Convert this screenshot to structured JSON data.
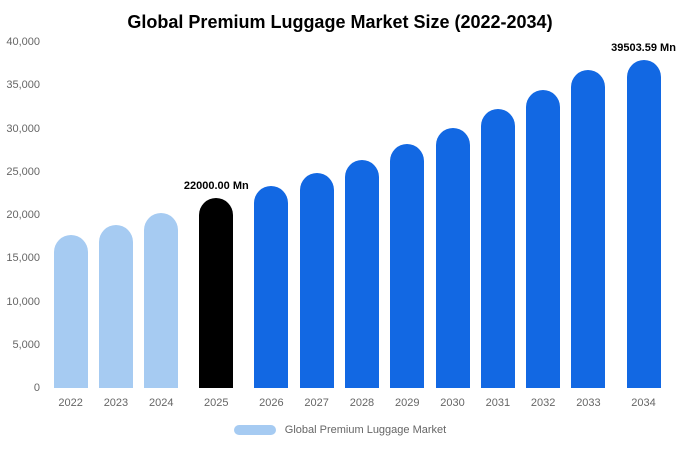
{
  "title": "Global Premium Luggage Market Size (2022-2034)",
  "legend": {
    "label": "Global Premium Luggage Market",
    "swatch_color": "#a6cbf2"
  },
  "colors": {
    "historical": "#a6cbf2",
    "current": "#000000",
    "forecast": "#1268e3",
    "axis_text": "#666666",
    "background": "#ffffff"
  },
  "chart_data": {
    "type": "bar",
    "title": "Global Premium Luggage Market Size (2022-2034)",
    "unit": "Mn",
    "categories": [
      "2022",
      "2023",
      "2024",
      "2025",
      "2026",
      "2027",
      "2028",
      "2029",
      "2030",
      "2031",
      "2032",
      "2033",
      "2034"
    ],
    "values": [
      17700,
      18900,
      20200,
      22000,
      23300,
      24800,
      26400,
      28200,
      30100,
      32200,
      34400,
      36800,
      39503.59
    ],
    "bar_types": [
      "historical",
      "historical",
      "historical",
      "current",
      "forecast",
      "forecast",
      "forecast",
      "forecast",
      "forecast",
      "forecast",
      "forecast",
      "forecast",
      "forecast"
    ],
    "annotations": [
      {
        "category": "2025",
        "text": "22000.00 Mn"
      },
      {
        "category": "2034",
        "text": "39503.59 Mn"
      }
    ],
    "ylim": [
      0,
      40000
    ],
    "yticks": [
      "0",
      "5,000",
      "10,000",
      "15,000",
      "20,000",
      "25,000",
      "30,000",
      "35,000",
      "40,000"
    ],
    "grid": false,
    "legend_position": "bottom"
  }
}
